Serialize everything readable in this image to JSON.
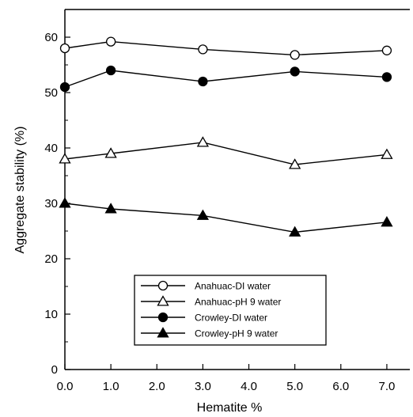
{
  "chart_data": {
    "type": "line",
    "title": "",
    "xlabel": "Hematite %",
    "ylabel": "Aggregate stability (%)",
    "xlim": [
      0,
      7.5
    ],
    "ylim": [
      0,
      65
    ],
    "x_ticks": [
      "0.0",
      "1.0",
      "2.0",
      "3.0",
      "4.0",
      "5.0",
      "6.0",
      "7.0"
    ],
    "x_tick_values": [
      0,
      1,
      2,
      3,
      4,
      5,
      6,
      7
    ],
    "y_ticks": [
      "0",
      "10",
      "20",
      "30",
      "40",
      "50",
      "60"
    ],
    "y_tick_values": [
      0,
      10,
      20,
      30,
      40,
      50,
      60
    ],
    "grid": false,
    "legend_position": "bottom-center",
    "x": [
      0,
      1,
      3,
      5,
      7
    ],
    "series": [
      {
        "name": "Anahuac-DI water",
        "marker": "open-circle",
        "values": [
          58,
          59.2,
          57.8,
          56.8,
          57.6
        ]
      },
      {
        "name": "Anahuac-pH 9 water",
        "marker": "open-triangle",
        "values": [
          38,
          39,
          41,
          37,
          38.8
        ]
      },
      {
        "name": "Crowley-DI water",
        "marker": "filled-circle",
        "values": [
          51,
          54,
          52,
          53.8,
          52.8
        ]
      },
      {
        "name": "Crowley-pH 9 water",
        "marker": "filled-triangle",
        "values": [
          30,
          29,
          27.8,
          24.8,
          26.6
        ]
      }
    ]
  }
}
